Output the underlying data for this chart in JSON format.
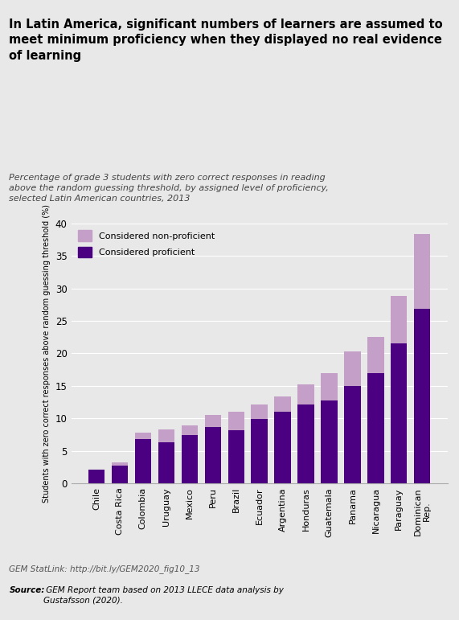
{
  "title": "In Latin America, significant numbers of learners are assumed to\nmeet minimum proficiency when they displayed no real evidence\nof learning",
  "subtitle": "Percentage of grade 3 students with zero correct responses in reading\nabove the random guessing threshold, by assigned level of proficiency,\nselected Latin American countries, 2013",
  "ylabel": "Students with zero correct responses above random guessing threshold (%)",
  "categories": [
    "Chile",
    "Costa Rica",
    "Colombia",
    "Uruguay",
    "Mexico",
    "Peru",
    "Brazil",
    "Ecuador",
    "Argentina",
    "Honduras",
    "Guatemala",
    "Panama",
    "Nicaragua",
    "Paraguay",
    "Dominican\nRep."
  ],
  "proficient_values": [
    2.2,
    2.8,
    6.8,
    6.4,
    7.4,
    8.7,
    8.2,
    9.9,
    11.0,
    12.2,
    12.8,
    15.0,
    17.0,
    21.5,
    26.8
  ],
  "non_proficient_values": [
    0.0,
    0.4,
    1.0,
    1.9,
    1.5,
    1.8,
    2.8,
    2.3,
    2.4,
    3.1,
    4.2,
    5.3,
    5.5,
    7.3,
    11.5
  ],
  "color_proficient": "#4B0082",
  "color_non_proficient": "#C4A0C8",
  "ylim": [
    0,
    40
  ],
  "yticks": [
    0,
    5,
    10,
    15,
    20,
    25,
    30,
    35,
    40
  ],
  "background_color": "#E8E8E8",
  "statlink": "GEM StatLink: http://bit.ly/GEM2020_fig10_13",
  "source_bold": "Source:",
  "source_rest": " GEM Report team based on 2013 LLECE data analysis by\nGustafsson (2020)."
}
